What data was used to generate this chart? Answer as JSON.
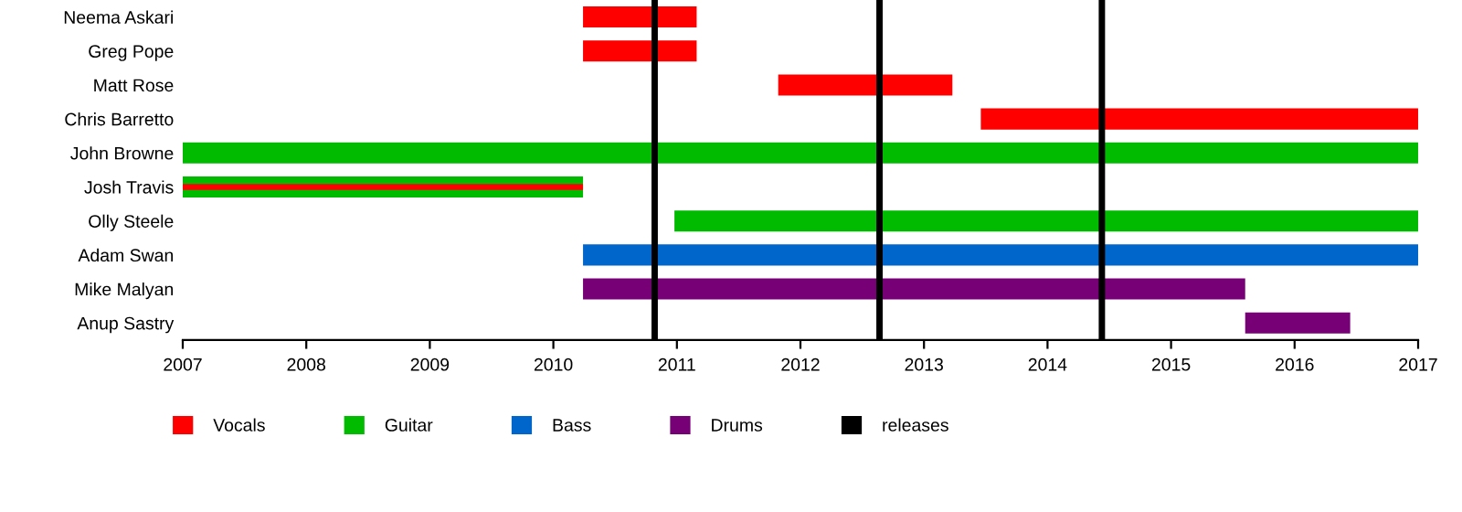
{
  "chart_data": {
    "type": "bar",
    "orientation": "horizontal",
    "categories": [
      "Neema Askari",
      "Greg Pope",
      "Matt Rose",
      "Chris Barretto",
      "John Browne",
      "Josh Travis",
      "Olly Steele",
      "Adam Swan",
      "Mike Malyan",
      "Anup Sastry"
    ],
    "series": [
      {
        "name": "Vocals",
        "color": "#ff0000",
        "base": [
          2010.24,
          2010.24,
          2011.82,
          2013.46,
          null,
          2007,
          null,
          null,
          null,
          null
        ],
        "values": [
          0.92,
          0.92,
          1.41,
          3.54,
          null,
          3.24,
          null,
          null,
          null,
          null
        ]
      },
      {
        "name": "Guitar",
        "color": "#00bb00",
        "base": [
          null,
          null,
          null,
          null,
          2007,
          2007,
          2010.98,
          null,
          null,
          null
        ],
        "values": [
          null,
          null,
          null,
          null,
          10,
          3.24,
          6.02,
          null,
          null,
          null
        ]
      },
      {
        "name": "Bass",
        "color": "#0066cc",
        "base": [
          null,
          null,
          null,
          null,
          null,
          null,
          null,
          2010.24,
          null,
          null
        ],
        "values": [
          null,
          null,
          null,
          null,
          null,
          null,
          null,
          6.76,
          null,
          null
        ]
      },
      {
        "name": "Drums",
        "color": "#770077",
        "base": [
          null,
          null,
          null,
          null,
          null,
          null,
          null,
          null,
          2010.24,
          2015.6
        ],
        "values": [
          null,
          null,
          null,
          null,
          null,
          null,
          null,
          null,
          5.36,
          0.85
        ]
      }
    ],
    "ref_lines": [
      {
        "axis": "x",
        "value": 2010.82,
        "label": "releases",
        "color": "#000000"
      },
      {
        "axis": "x",
        "value": 2012.64,
        "color": "#000000"
      },
      {
        "axis": "x",
        "value": 2014.44,
        "color": "#000000"
      }
    ],
    "xlim": [
      2007,
      2017
    ],
    "xticks": [
      2007,
      2008,
      2009,
      2010,
      2011,
      2012,
      2013,
      2014,
      2015,
      2016,
      2017
    ],
    "legend": "bottom",
    "grid": false
  }
}
